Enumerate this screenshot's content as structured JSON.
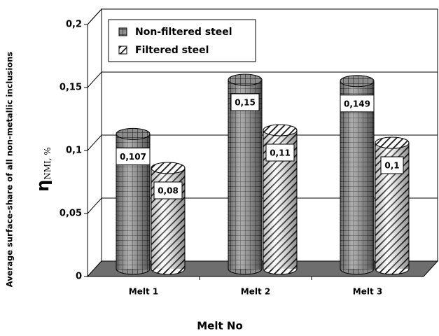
{
  "chart_data": {
    "type": "cylinder-bar",
    "y_label": "Average surface-share of all non-metallic inclusions",
    "y_symbol": "η",
    "y_symbol_sub": "NMI, %",
    "x_label": "Melt No",
    "categories": [
      "Melt 1",
      "Melt 2",
      "Melt 3"
    ],
    "series": [
      {
        "name": "Non-filtered steel",
        "color": "#8c8c8c",
        "pattern": "grid",
        "values": [
          0.107,
          0.15,
          0.149
        ],
        "value_labels": [
          "0,107",
          "0,15",
          "0,149"
        ]
      },
      {
        "name": "Filtered steel",
        "color": "#ffffff",
        "pattern": "hatch",
        "values": [
          0.08,
          0.11,
          0.1
        ],
        "value_labels": [
          "0,08",
          "0,11",
          "0,1"
        ]
      }
    ],
    "ylim": [
      0,
      0.2
    ],
    "yticks": [
      0,
      {
        "value": 0.05,
        "label": "0,05"
      },
      {
        "value": 0.1,
        "label": "0,1"
      },
      {
        "value": 0.15,
        "label": "0,15"
      },
      {
        "value": 0.2,
        "label": "0,2"
      }
    ],
    "grid": true
  }
}
